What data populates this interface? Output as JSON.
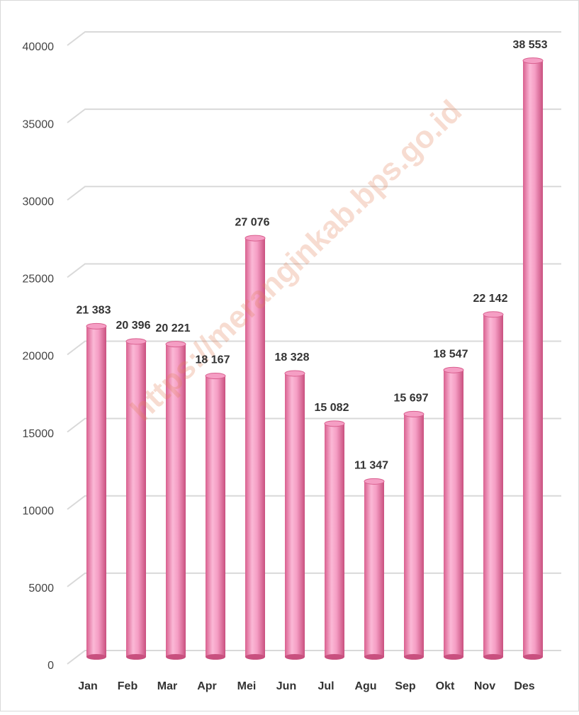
{
  "chart_data": {
    "type": "bar",
    "watermark": "https://meranginkab.bps.go.id",
    "categories": [
      "Jan",
      "Feb",
      "Mar",
      "Apr",
      "Mei",
      "Jun",
      "Jul",
      "Agu",
      "Sep",
      "Okt",
      "Nov",
      "Des"
    ],
    "values": [
      21383,
      20396,
      20221,
      18167,
      27076,
      18328,
      15082,
      11347,
      15697,
      18547,
      22142,
      38553
    ],
    "value_labels": [
      "21 383",
      "20 396",
      "20 221",
      "18 167",
      "27 076",
      "18 328",
      "15 082",
      "11 347",
      "15 697",
      "18 547",
      "22 142",
      "38 553"
    ],
    "color": "#f59ec4",
    "ylim": [
      0,
      40000
    ],
    "yticks": [
      0,
      5000,
      10000,
      15000,
      20000,
      25000,
      30000,
      35000,
      40000
    ],
    "grid": true
  }
}
